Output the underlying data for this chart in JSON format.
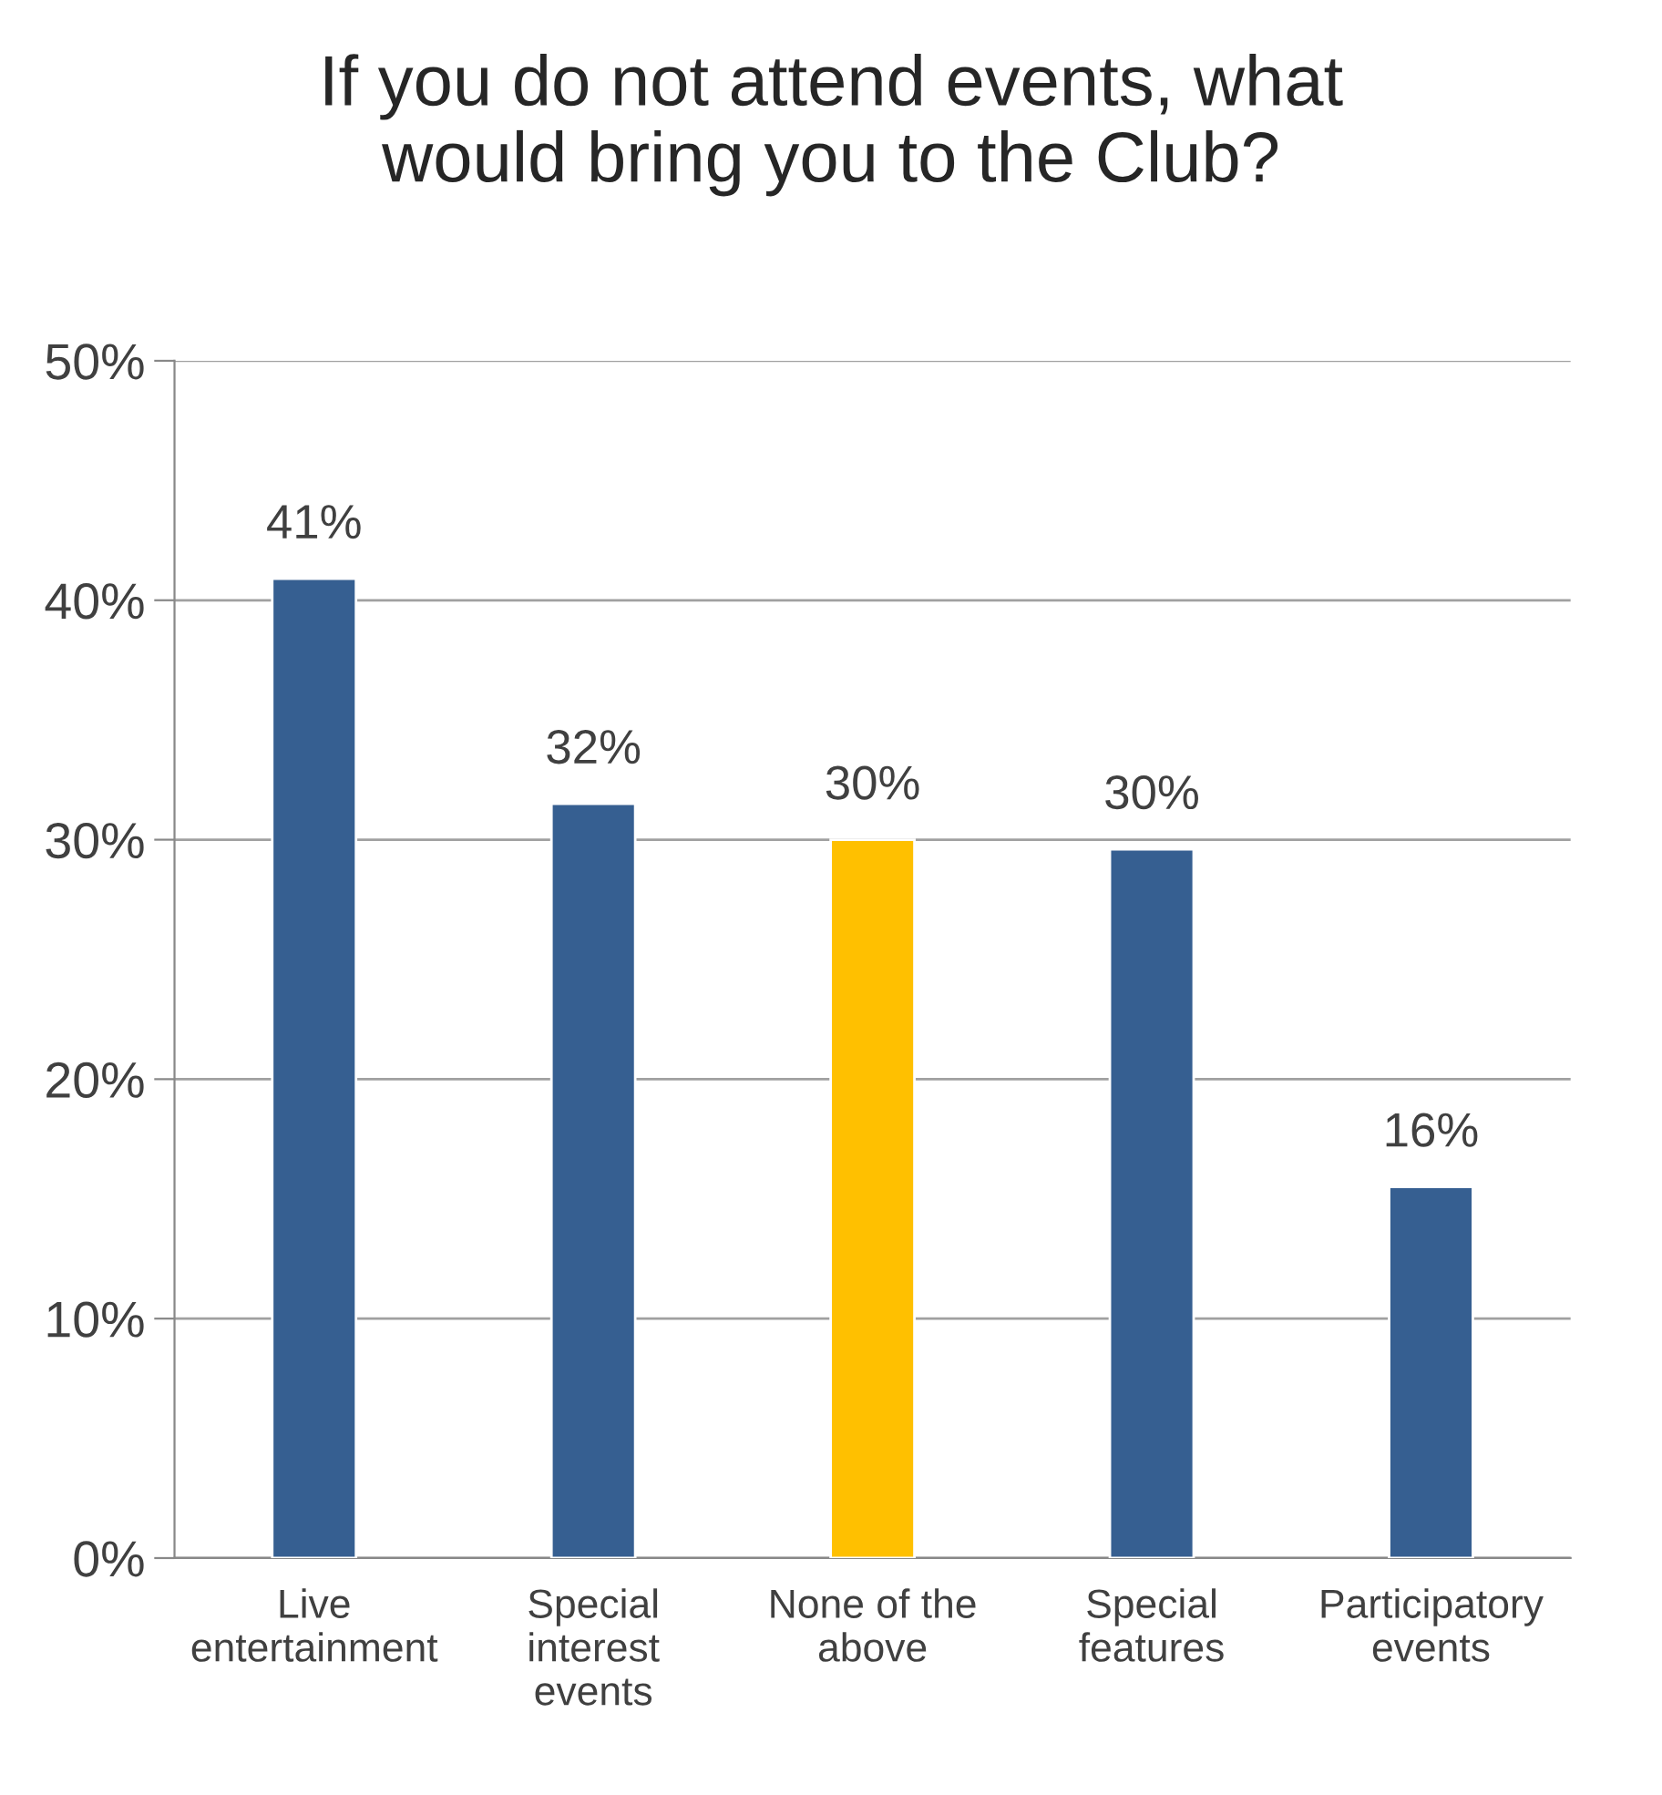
{
  "chart_data": {
    "type": "bar",
    "title": "If you do not attend events, what\nwould bring you to the Club?",
    "categories": [
      "Live\nentertainment",
      "Special\ninterest\nevents",
      "None of the\nabove",
      "Special\nfeatures",
      "Participatory\nevents"
    ],
    "values": [
      40.9,
      31.5,
      30.0,
      29.6,
      15.5
    ],
    "colors": [
      "#365f91",
      "#365f91",
      "#ffc000",
      "#365f91",
      "#365f91"
    ],
    "value_labels": [
      "41%",
      "32%",
      "30%",
      "30%",
      "16%"
    ],
    "ylim": [
      0,
      50
    ],
    "yticks": [
      {
        "value": 0,
        "label": "0%"
      },
      {
        "value": 10,
        "label": "10%"
      },
      {
        "value": 20,
        "label": "20%"
      },
      {
        "value": 30,
        "label": "30%"
      },
      {
        "value": 40,
        "label": "40%"
      },
      {
        "value": 50,
        "label": "50%"
      }
    ],
    "grid": "y"
  }
}
